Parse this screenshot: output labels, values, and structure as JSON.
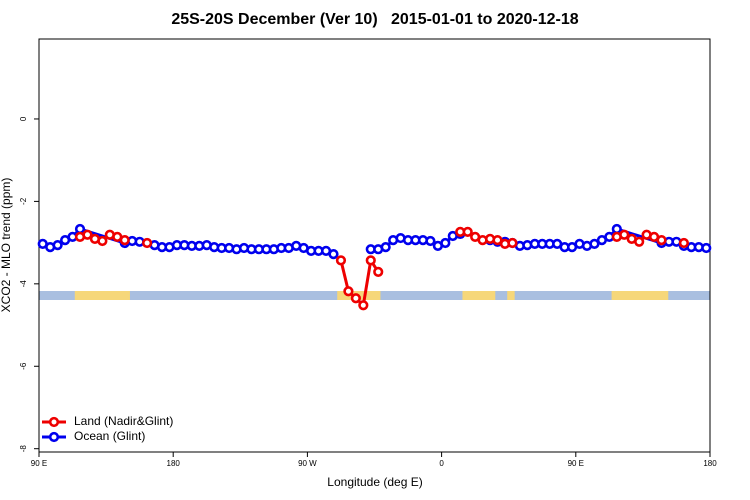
{
  "chart_data": {
    "type": "line",
    "title": "25S-20S December (Ver 10)   2015-01-01 to 2020-12-18",
    "x_label": "Longitude (deg E)",
    "y_label": "XCO2 - MLO trend (ppm)",
    "xlim": [
      90,
      540
    ],
    "xticks": [
      {
        "value": 90,
        "label": "90 E"
      },
      180,
      {
        "value": 270,
        "label": "90 W"
      },
      {
        "value": 360,
        "label": "0"
      },
      {
        "value": 450,
        "label": "90 E"
      },
      {
        "value": 540,
        "label": "180"
      }
    ],
    "ylim": [
      -8.08,
      1.94
    ],
    "yticks": [
      0,
      -2,
      -4,
      -6,
      -8
    ],
    "legend": "bottom-left",
    "land_color": "#f6d77a",
    "ocean_color": "#a9bfe0",
    "land_lon": [
      [
        114,
        151
      ],
      [
        290,
        319
      ],
      [
        374,
        396
      ],
      [
        404,
        409
      ],
      [
        474,
        512
      ]
    ],
    "series": [
      {
        "name": "Ocean (Glint)",
        "color": "#0000ee",
        "x": [
          92.5,
          97.5,
          102.5,
          107.5,
          112.5,
          117.5,
          147.5,
          152.5,
          157.5,
          167.5,
          172.5,
          177.5,
          182.5,
          187.5,
          192.5,
          197.5,
          202.5,
          207.5,
          212.5,
          217.5,
          222.5,
          227.5,
          232.5,
          237.5,
          242.5,
          247.5,
          252.5,
          257.5,
          262.5,
          267.5,
          272.5,
          277.5,
          282.5,
          287.5,
          300,
          312.5,
          317.5,
          322.5,
          327.5,
          332.5,
          337.5,
          342.5,
          347.5,
          352.5,
          357.5,
          362.5,
          367.5,
          372.5,
          382.5,
          392.5,
          397.5,
          402.5,
          407.5,
          412.5,
          417.5,
          422.5,
          427.5,
          432.5,
          437.5,
          442.5,
          447.5,
          452.5,
          457.5,
          462.5,
          467.5,
          472.5,
          477.5,
          507.5,
          512.5,
          517.5,
          522.5,
          527.5,
          532.5,
          537.5
        ],
        "values": [
          -3.03,
          -3.11,
          -3.06,
          -2.94,
          -2.86,
          -2.67,
          -3.01,
          -2.96,
          -2.98,
          -3.06,
          -3.11,
          -3.11,
          -3.06,
          -3.06,
          -3.08,
          -3.08,
          -3.06,
          -3.11,
          -3.13,
          -3.13,
          -3.16,
          -3.13,
          -3.16,
          -3.16,
          -3.16,
          -3.16,
          -3.13,
          -3.13,
          -3.08,
          -3.13,
          -3.2,
          -3.2,
          -3.2,
          -3.28,
          null,
          -3.16,
          -3.16,
          -3.11,
          -2.94,
          -2.89,
          -2.94,
          -2.94,
          -2.94,
          -2.96,
          -3.08,
          -3.01,
          -2.84,
          -2.79,
          null,
          -2.94,
          -2.98,
          -2.98,
          -3.01,
          -3.08,
          -3.06,
          -3.03,
          -3.03,
          -3.03,
          -3.03,
          -3.11,
          -3.11,
          -3.03,
          -3.08,
          -3.03,
          -2.94,
          -2.86,
          -2.67,
          -3.01,
          -2.98,
          -2.98,
          -3.08,
          -3.11,
          -3.11,
          -3.13
        ]
      },
      {
        "name": "Land (Nadir&Glint)",
        "color": "#ee0000",
        "x": [
          117.5,
          122.5,
          127.5,
          132.5,
          137.5,
          142.5,
          147.5,
          155,
          162.5,
          230,
          292.5,
          297.5,
          302.5,
          307.5,
          312.5,
          317.5,
          345,
          372.5,
          377.5,
          382.5,
          387.5,
          392.5,
          397.5,
          402.5,
          407.5,
          440,
          477.5,
          482.5,
          487.5,
          492.5,
          497.5,
          502.5,
          507.5,
          515,
          522.5
        ],
        "values": [
          -2.86,
          -2.81,
          -2.91,
          -2.96,
          -2.81,
          -2.86,
          -2.94,
          null,
          -3.01,
          null,
          -3.43,
          -4.18,
          -4.35,
          -4.52,
          -3.43,
          -3.71,
          null,
          -2.74,
          -2.74,
          -2.86,
          -2.94,
          -2.91,
          -2.94,
          -3.03,
          -3.01,
          null,
          -2.86,
          -2.81,
          -2.91,
          -2.98,
          -2.81,
          -2.86,
          -2.94,
          null,
          -3.01
        ]
      }
    ]
  }
}
